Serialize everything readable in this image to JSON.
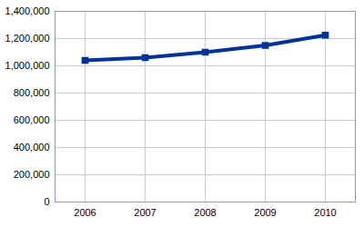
{
  "chart_data": {
    "type": "line",
    "categories": [
      "2006",
      "2007",
      "2008",
      "2009",
      "2010"
    ],
    "values": [
      1040000,
      1060000,
      1100000,
      1150000,
      1225000
    ],
    "color": "#003399",
    "marker": "square",
    "line_style": "solid",
    "ylim": [
      0,
      1400000
    ],
    "yticks": [
      0,
      {
        "value": 200000,
        "label": "200,000"
      },
      {
        "value": 400000,
        "label": "400,000"
      },
      {
        "value": 600000,
        "label": "600,000"
      },
      {
        "value": 800000,
        "label": "800,000"
      },
      {
        "value": 1000000,
        "label": "1,000,000"
      },
      {
        "value": 1200000,
        "label": "1,200,000"
      },
      {
        "value": 1400000,
        "label": "1,400,000"
      }
    ],
    "grid": true
  }
}
